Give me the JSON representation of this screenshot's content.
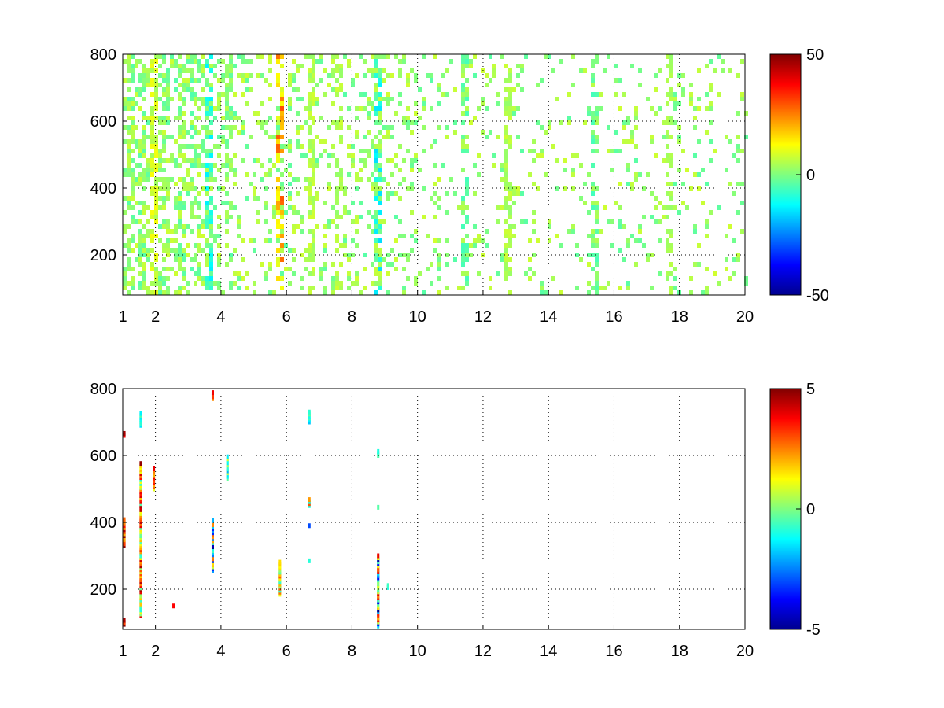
{
  "chart_data": [
    {
      "type": "heatmap",
      "title": "",
      "xlabel": "",
      "ylabel": "",
      "xlim": [
        1,
        20
      ],
      "ylim": [
        80,
        800
      ],
      "x_ticks": [
        1,
        2,
        4,
        6,
        8,
        10,
        12,
        14,
        16,
        18,
        20
      ],
      "y_ticks": [
        200,
        400,
        600,
        800
      ],
      "grid": "dotted",
      "colormap": "jet",
      "color_range": [
        -50,
        50
      ],
      "colorbar_ticks": [
        -50,
        0,
        50
      ],
      "colorbar_placement": "right",
      "sparsity": "dense scattered cells across the full range; denser below x=10",
      "columns": [
        {
          "x": 1.2,
          "weight": 0.8,
          "c": [
            -4,
            8
          ]
        },
        {
          "x": 1.5,
          "weight": 0.8,
          "c": [
            -4,
            8
          ]
        },
        {
          "x": 1.85,
          "weight": 0.9,
          "c": [
            2,
            12
          ]
        },
        {
          "x": 2.3,
          "weight": 0.7,
          "c": [
            -4,
            8
          ]
        },
        {
          "x": 2.7,
          "weight": 0.7,
          "c": [
            -4,
            8
          ]
        },
        {
          "x": 3.1,
          "weight": 0.6,
          "c": [
            -6,
            6
          ]
        },
        {
          "x": 3.55,
          "weight": 0.9,
          "c": [
            -14,
            6
          ]
        },
        {
          "x": 4.2,
          "weight": 0.5,
          "c": [
            -4,
            6
          ]
        },
        {
          "x": 5.8,
          "weight": 0.6,
          "c": [
            -4,
            30
          ]
        },
        {
          "x": 6.65,
          "weight": 0.9,
          "c": [
            2,
            8
          ]
        },
        {
          "x": 7.5,
          "weight": 0.5,
          "c": [
            2,
            8
          ]
        },
        {
          "x": 8.75,
          "weight": 1.0,
          "c": [
            -16,
            8
          ]
        },
        {
          "x": 11.4,
          "weight": 0.6,
          "c": [
            -6,
            6
          ]
        },
        {
          "x": 12.7,
          "weight": 0.6,
          "c": [
            2,
            8
          ]
        },
        {
          "x": 15.3,
          "weight": 0.5,
          "c": [
            -6,
            6
          ]
        },
        {
          "x": 17.6,
          "weight": 0.6,
          "c": [
            2,
            6
          ]
        }
      ]
    },
    {
      "type": "heatmap",
      "title": "",
      "xlabel": "",
      "ylabel": "",
      "xlim": [
        1,
        20
      ],
      "ylim": [
        80,
        800
      ],
      "x_ticks": [
        1,
        2,
        4,
        6,
        8,
        10,
        12,
        14,
        16,
        18,
        20
      ],
      "y_ticks": [
        200,
        400,
        600,
        800
      ],
      "grid": "dotted",
      "colormap": "jet",
      "color_range": [
        -5,
        5
      ],
      "colorbar_ticks": [
        -5,
        0,
        5
      ],
      "colorbar_placement": "right",
      "streaks": [
        {
          "x": 1.05,
          "y_from": 330,
          "y_to": 410,
          "c": [
            2,
            5
          ]
        },
        {
          "x": 1.05,
          "y_from": 660,
          "y_to": 670,
          "c": [
            3,
            5
          ]
        },
        {
          "x": 1.05,
          "y_from": 95,
          "y_to": 110,
          "c": [
            3,
            5
          ]
        },
        {
          "x": 1.55,
          "y_from": 120,
          "y_to": 580,
          "c": [
            -1,
            5
          ]
        },
        {
          "x": 1.55,
          "y_from": 690,
          "y_to": 730,
          "c": [
            -2,
            0
          ]
        },
        {
          "x": 1.95,
          "y_from": 500,
          "y_to": 560,
          "c": [
            1,
            4
          ]
        },
        {
          "x": 2.55,
          "y_from": 150,
          "y_to": 155,
          "c": [
            3,
            4
          ]
        },
        {
          "x": 3.75,
          "y_from": 255,
          "y_to": 410,
          "c": [
            -5,
            3
          ]
        },
        {
          "x": 3.75,
          "y_from": 770,
          "y_to": 790,
          "c": [
            2,
            4
          ]
        },
        {
          "x": 4.2,
          "y_from": 530,
          "y_to": 600,
          "c": [
            -2,
            1
          ]
        },
        {
          "x": 5.8,
          "y_from": 185,
          "y_to": 285,
          "c": [
            -1,
            3
          ]
        },
        {
          "x": 6.7,
          "y_from": 450,
          "y_to": 470,
          "c": [
            -1,
            3
          ]
        },
        {
          "x": 6.7,
          "y_from": 700,
          "y_to": 730,
          "c": [
            -2,
            0
          ]
        },
        {
          "x": 6.7,
          "y_from": 390,
          "y_to": 395,
          "c": [
            -4,
            -3
          ]
        },
        {
          "x": 6.7,
          "y_from": 285,
          "y_to": 290,
          "c": [
            -1,
            0
          ]
        },
        {
          "x": 8.8,
          "y_from": 90,
          "y_to": 300,
          "c": [
            -5,
            4
          ]
        },
        {
          "x": 8.8,
          "y_from": 600,
          "y_to": 615,
          "c": [
            -1,
            0
          ]
        },
        {
          "x": 8.8,
          "y_from": 445,
          "y_to": 450,
          "c": [
            -1,
            0
          ]
        },
        {
          "x": 9.1,
          "y_from": 205,
          "y_to": 215,
          "c": [
            -1,
            0
          ]
        }
      ]
    }
  ]
}
